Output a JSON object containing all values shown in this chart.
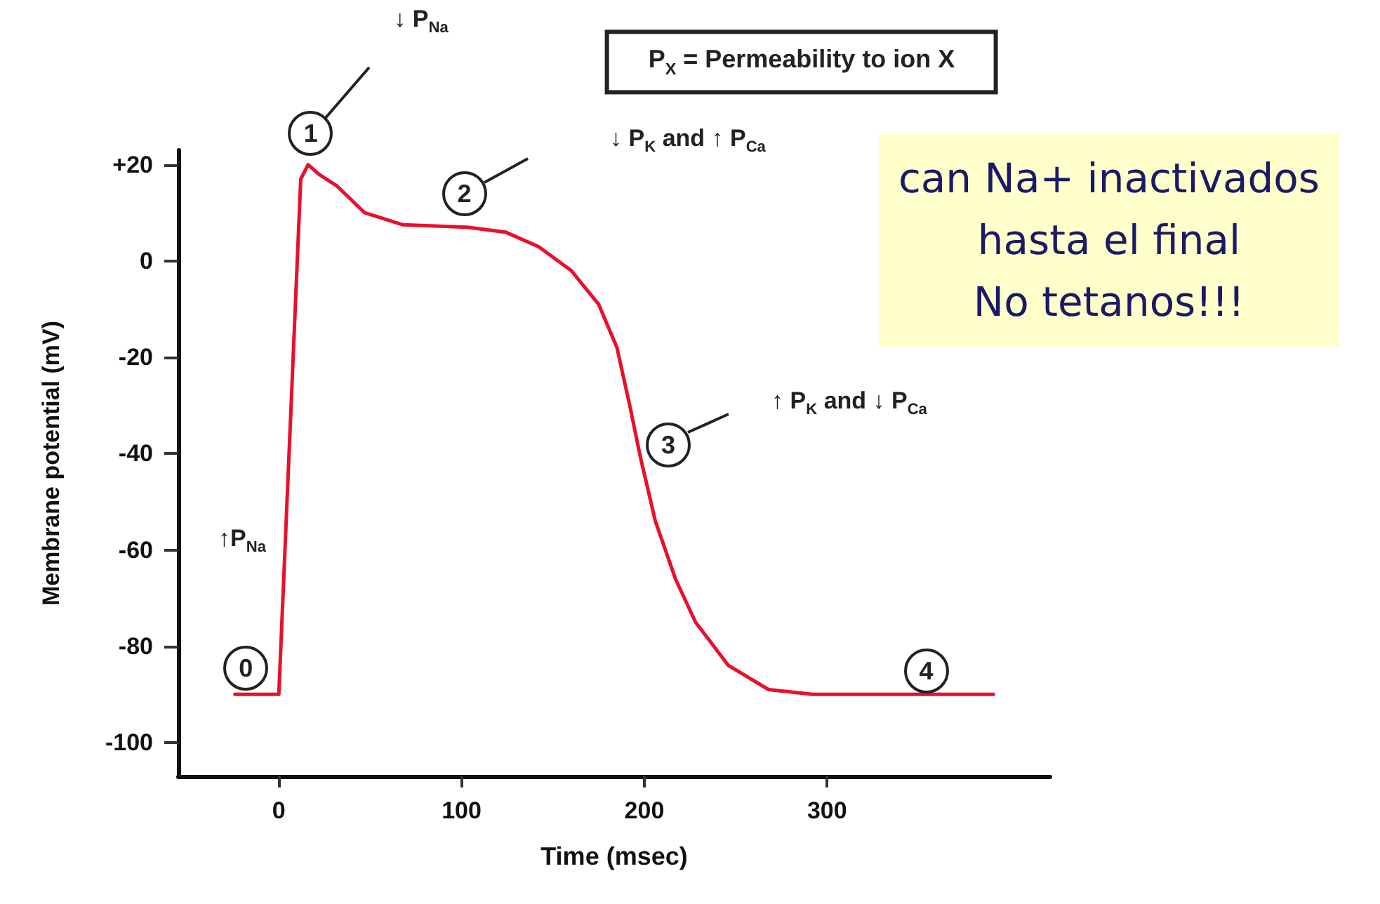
{
  "chart_data": {
    "type": "line",
    "xlabel": "Time (msec)",
    "ylabel": "Membrane potential (mV)",
    "xlim": [
      -55,
      422
    ],
    "ylim": [
      -107,
      23
    ],
    "xticks": [
      0,
      100,
      200,
      300
    ],
    "yticks": [
      {
        "value": 20,
        "label": "+20"
      },
      0,
      -20,
      -40,
      -60,
      -80,
      -100
    ],
    "marker": "none",
    "series": [
      {
        "color": "#e8102a",
        "x": [
          -24,
          0,
          12,
          16,
          22,
          32,
          47,
          68,
          103,
          124,
          142,
          160,
          175,
          185,
          192,
          198,
          206,
          217,
          228,
          246,
          268,
          292,
          391
        ],
        "values": [
          -90,
          -90,
          17,
          20,
          18,
          15.5,
          10,
          7.5,
          7,
          6,
          3,
          -2,
          -9,
          -18,
          -30,
          -41,
          -54,
          -66,
          -75,
          -84,
          -89,
          -90,
          -90
        ]
      }
    ],
    "annotations": [
      "P$_{X}$ = Permeability to ion X",
      "can Na+ inactivados\nhasta el final\nNo tetanos!!!",
      {
        "text": "0",
        "x": -18,
        "y": -90
      },
      {
        "text": "↑P$_{Na}$",
        "x": 3,
        "y": -60
      },
      {
        "text": "1",
        "x": 16,
        "y": 20
      },
      "↓ P$_{Na}$",
      {
        "text": "2",
        "x": 100,
        "y": 7
      },
      "↓ P$_{K}$ and ↑ P$_{Ca}$",
      {
        "text": "3",
        "x": 197,
        "y": -38
      },
      "↑ P$_{K}$ and ↓ P$_{Ca}$",
      {
        "text": "4",
        "x": 355,
        "y": -90
      }
    ]
  }
}
